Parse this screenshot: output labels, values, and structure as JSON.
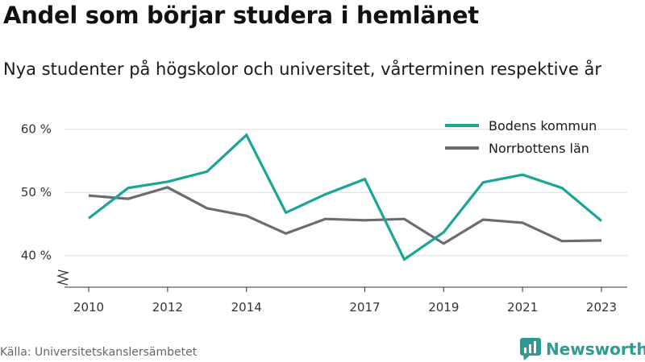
{
  "header": {
    "title": "Andel som börjar studera i hemlänet",
    "subtitle": "Nya studenter på högskolor och universitet, vårterminen respektive år"
  },
  "footer": {
    "source": "Källa: Universitetskanslersämbetet",
    "brand": "Newsworthy",
    "brand_icon": "newsworthy-logo-icon",
    "brand_color": "#2e9a91"
  },
  "chart_data": {
    "type": "line",
    "title": "Andel som börjar studera i hemlänet",
    "subtitle": "Nya studenter på högskolor och universitet, vårterminen respektive år",
    "x": [
      2010,
      2011,
      2012,
      2013,
      2014,
      2015,
      2016,
      2017,
      2018,
      2019,
      2020,
      2021,
      2022,
      2023
    ],
    "x_ticks": [
      2010,
      2012,
      2014,
      2017,
      2019,
      2021,
      2023
    ],
    "y_ticks": [
      40,
      50,
      60
    ],
    "y_tick_suffix": " %",
    "ylim": [
      35,
      62
    ],
    "y_axis_break": true,
    "grid": true,
    "legend_position": "top-right",
    "series": [
      {
        "name": "Bodens kommun",
        "color": "#1aa595",
        "values": [
          45.9,
          50.7,
          51.7,
          53.3,
          59.1,
          46.8,
          49.7,
          52.1,
          39.4,
          43.7,
          51.6,
          52.8,
          50.7,
          45.5
        ]
      },
      {
        "name": "Norrbottens län",
        "color": "#6b6b73",
        "values": [
          49.5,
          49.0,
          50.8,
          47.5,
          46.3,
          43.5,
          45.8,
          45.6,
          45.8,
          41.9,
          45.7,
          45.2,
          42.3,
          42.4
        ]
      }
    ]
  }
}
